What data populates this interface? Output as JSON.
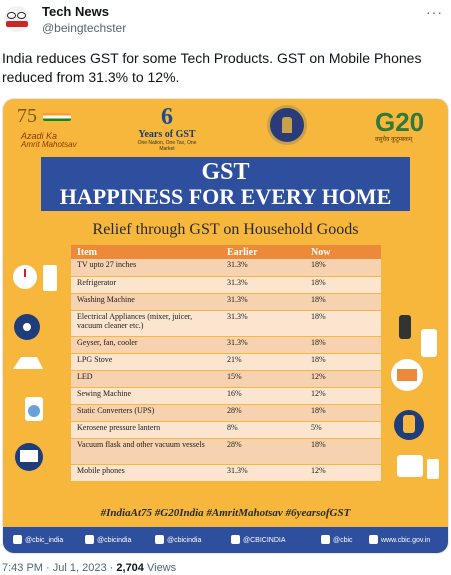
{
  "tweet": {
    "display_name": "Tech News",
    "handle": "@beingtechster",
    "more_label": "···",
    "text": "India reduces GST for some Tech Products. GST on Mobile Phones reduced from 31.3% to 12%.",
    "time": "7:43 PM",
    "date": "Jul 1, 2023",
    "views": "2,704",
    "views_label": "Views",
    "separator": "·"
  },
  "infographic": {
    "logos": {
      "azadi_num": "75",
      "azadi_line1": "Azadi Ka",
      "azadi_line2": "Amrit Mahotsav",
      "years_num": "6",
      "years_title": "Years of GST",
      "years_sub": "One Nation, One Tax, One Market",
      "g20_text": "G20",
      "g20_sub": "वसुधैव कुटुम्बकम्"
    },
    "banner_line1": "GST",
    "banner_line2": "HAPPINESS FOR EVERY HOME",
    "subtitle": "Relief through GST on Household Goods",
    "columns": [
      "Item",
      "Earlier",
      "Now"
    ],
    "rows": [
      {
        "item": "TV upto 27 inches",
        "earlier": "31.3%",
        "now": "18%"
      },
      {
        "item": "Refrigerator",
        "earlier": "31.3%",
        "now": "18%"
      },
      {
        "item": "Washing Machine",
        "earlier": "31.3%",
        "now": "18%"
      },
      {
        "item": "Electrical Appliances (mixer, juicer, vacuum cleaner etc.)",
        "earlier": "31.3%",
        "now": "18%"
      },
      {
        "item": "Geyser, fan, cooler",
        "earlier": "31.3%",
        "now": "18%"
      },
      {
        "item": "LPG Stove",
        "earlier": "21%",
        "now": "18%"
      },
      {
        "item": "LED",
        "earlier": "15%",
        "now": "12%"
      },
      {
        "item": "Sewing Machine",
        "earlier": "16%",
        "now": "12%"
      },
      {
        "item": "Static Converters (UPS)",
        "earlier": "28%",
        "now": "18%"
      },
      {
        "item": "Kerosene pressure lantern",
        "earlier": "8%",
        "now": "5%"
      },
      {
        "item": "Vacuum flask and other vacuum vessels",
        "earlier": "28%",
        "now": "18%"
      },
      {
        "item": "Mobile phones",
        "earlier": "31.3%",
        "now": "12%"
      }
    ],
    "hashtags": "#IndiaAt75  #G20India  #AmritMahotsav  #6yearsofGST",
    "social": [
      {
        "label": "@cbic_india",
        "icon": "twitter-icon"
      },
      {
        "label": "@cbicindia",
        "icon": "facebook-icon"
      },
      {
        "label": "@cbicindia",
        "icon": "instagram-icon"
      },
      {
        "label": "@CBICINDIA",
        "icon": "youtube-icon"
      },
      {
        "label": "@cbic",
        "icon": "koo-icon"
      },
      {
        "label": "www.cbic.gov.in",
        "icon": "globe-icon"
      }
    ],
    "colors": {
      "background": "#f6b73c",
      "banner": "#2e4e9e",
      "table_header": "#ec8a3a",
      "row_light": "#fbe5cf",
      "row_dark": "#f6d2b0"
    }
  }
}
